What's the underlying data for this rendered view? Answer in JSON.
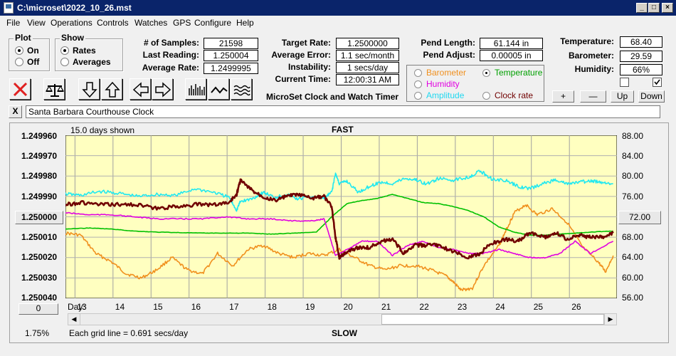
{
  "window": {
    "title": "C:\\microset\\2022_10_26.mst"
  },
  "menu": [
    "File",
    "View",
    "Operations",
    "Controls",
    "Watches",
    "GPS",
    "Configure",
    "Help"
  ],
  "plot_group": {
    "label": "Plot",
    "on": "On",
    "off": "Off",
    "selected": "On"
  },
  "show_group": {
    "label": "Show",
    "rates": "Rates",
    "averages": "Averages",
    "selected": "Rates"
  },
  "stats": {
    "samples_label": "# of Samples:",
    "samples": "21598",
    "last_label": "Last Reading:",
    "last": "1.250004",
    "avg_label": "Average Rate:",
    "avg": "1.2499995",
    "target_label": "Target Rate:",
    "target": "1.2500000",
    "avgerr_label": "Average Error:",
    "avgerr": "1.1 sec/month",
    "instab_label": "Instability:",
    "instab": "1 secs/day",
    "time_label": "Current Time:",
    "time": "12:00:31 AM",
    "pendlen_label": "Pend Length:",
    "pendlen": "61.144 in",
    "pendadj_label": "Pend Adjust:",
    "pendadj": "0.00005 in",
    "temp_label": "Temperature:",
    "temp": "68.40",
    "baro_label": "Barometer:",
    "baro": "29.59",
    "hum_label": "Humidity:",
    "hum": "66%"
  },
  "app_name": "MicroSet Clock and Watch Timer",
  "sensor_options": {
    "barometer": "Barometer",
    "temperature": "Temperature",
    "humidity": "Humidity",
    "amplitude": "Amplitude",
    "clockrate": "Clock rate",
    "selected": "Temperature"
  },
  "scale_buttons": {
    "plus": "+",
    "minus": "—",
    "up": "Up",
    "down": "Down"
  },
  "note": {
    "close": "X",
    "text": "Santa Barbara Courthouse Clock"
  },
  "graph": {
    "days_shown": "15.0 days shown",
    "fast": "FAST",
    "slow": "SLOW",
    "grid_note": "Each grid line = 0.691 secs/day",
    "left_ticks": [
      "1.249960",
      "1.249970",
      "1.249980",
      "1.249990",
      "1.250000",
      "1.250010",
      "1.250020",
      "1.250030",
      "1.250040"
    ],
    "right_ticks": [
      "88.00",
      "84.00",
      "80.00",
      "76.00",
      "72.00",
      "68.00",
      "64.00",
      "60.00",
      "56.00"
    ],
    "day_label": "Day:",
    "days": [
      "13",
      "14",
      "15",
      "16",
      "17",
      "18",
      "19",
      "20",
      "21",
      "22",
      "23",
      "24",
      "25",
      "26"
    ],
    "offset_button": "0",
    "percent": "1.75%",
    "colors": {
      "background": "#ffffc0",
      "rate": "#700000",
      "temperature": "#00c000",
      "barometer": "#f0901e",
      "humidity": "#e000e0",
      "amplitude": "#20e8f0"
    }
  },
  "chart_data": {
    "type": "line",
    "x_label": "Day",
    "xlim": [
      12.4,
      26.9
    ],
    "series": [
      {
        "key": "rate",
        "axis": "left",
        "x": [
          12.4,
          12.8,
          13.3,
          13.8,
          14.3,
          14.8,
          15.3,
          15.8,
          16.3,
          16.7,
          16.9,
          17.0,
          17.3,
          17.6,
          17.9,
          18.2,
          18.5,
          18.9,
          19.2,
          19.4,
          19.5,
          19.6,
          19.8,
          20.1,
          20.4,
          20.7,
          21.0,
          21.3,
          21.6,
          21.9,
          22.2,
          22.6,
          23.0,
          23.3,
          23.6,
          24.0,
          24.3,
          24.6,
          25.0,
          25.3,
          25.6,
          25.9,
          26.2,
          26.5,
          26.8
        ],
        "y": [
          1.249994,
          1.249993,
          1.249994,
          1.249994,
          1.249994,
          1.249996,
          1.249995,
          1.249994,
          1.249994,
          1.249993,
          1.249989,
          1.249982,
          1.249987,
          1.24999,
          1.249992,
          1.24999,
          1.249989,
          1.249991,
          1.24999,
          1.249995,
          1.25001,
          1.25002,
          1.250017,
          1.250015,
          1.250015,
          1.250012,
          1.250011,
          1.250018,
          1.250014,
          1.250014,
          1.250014,
          1.250017,
          1.25002,
          1.250018,
          1.250013,
          1.250011,
          1.250012,
          1.250008,
          1.25001,
          1.250008,
          1.250011,
          1.250009,
          1.25001,
          1.25001,
          1.250008
        ]
      },
      {
        "key": "amplitude",
        "axis": "right",
        "x": [
          12.4,
          12.8,
          13.3,
          13.8,
          14.3,
          14.8,
          15.3,
          15.8,
          16.3,
          16.7,
          16.9,
          17.0,
          17.3,
          17.6,
          17.9,
          18.2,
          18.5,
          18.9,
          19.2,
          19.4,
          19.5,
          19.6,
          19.8,
          20.1,
          20.4,
          20.7,
          21.0,
          21.3,
          21.6,
          21.9,
          22.2,
          22.6,
          23.0,
          23.3,
          23.6,
          24.0,
          24.3,
          24.6,
          25.0,
          25.3,
          25.6,
          25.9,
          26.2,
          26.5,
          26.8
        ],
        "y": [
          76.5,
          76.2,
          77.0,
          76.6,
          76.0,
          76.4,
          76.2,
          77.5,
          76.8,
          75.8,
          73.3,
          75.0,
          75.5,
          76.8,
          75.8,
          76.4,
          75.5,
          76.0,
          75.6,
          76.8,
          80.5,
          78.5,
          79.0,
          76.8,
          78.0,
          78.8,
          78.5,
          79.5,
          79.3,
          78.4,
          79.5,
          79.2,
          79.8,
          81.0,
          79.5,
          79.0,
          78.0,
          77.5,
          78.6,
          79.3,
          78.4,
          78.8,
          79.0,
          78.8,
          78.5
        ]
      },
      {
        "key": "temperature",
        "axis": "right",
        "x": [
          12.4,
          13.0,
          13.6,
          14.2,
          14.8,
          15.4,
          16.0,
          16.6,
          17.2,
          17.8,
          18.4,
          19.0,
          19.4,
          19.8,
          20.2,
          20.6,
          21.0,
          21.4,
          21.8,
          22.2,
          22.6,
          23.0,
          23.4,
          23.8,
          24.2,
          24.6,
          25.0,
          25.4,
          25.8,
          26.2,
          26.8
        ],
        "y": [
          69.6,
          69.8,
          69.6,
          69.2,
          69.0,
          68.9,
          68.8,
          68.8,
          68.8,
          68.6,
          68.8,
          69.0,
          72.0,
          74.6,
          75.2,
          75.6,
          76.4,
          75.6,
          74.8,
          74.6,
          74.0,
          73.2,
          72.0,
          70.0,
          69.0,
          68.4,
          68.4,
          68.6,
          68.8,
          69.0,
          69.2
        ]
      },
      {
        "key": "barometer",
        "axis": "left",
        "x": [
          12.4,
          12.8,
          13.2,
          13.6,
          14.0,
          14.4,
          14.8,
          15.2,
          15.6,
          16.0,
          16.4,
          16.8,
          17.2,
          17.6,
          18.0,
          18.4,
          18.8,
          19.2,
          19.6,
          20.0,
          20.4,
          20.8,
          21.2,
          21.6,
          22.0,
          22.4,
          22.6,
          22.8,
          23.1,
          23.4,
          23.8,
          24.0,
          24.2,
          24.5,
          24.8,
          25.2,
          25.6,
          26.0,
          26.4,
          26.6,
          26.8
        ],
        "y": [
          1.250008,
          1.250009,
          1.250018,
          1.250022,
          1.250028,
          1.25003,
          1.250026,
          1.25002,
          1.250026,
          1.250028,
          1.250018,
          1.250024,
          1.250016,
          1.250014,
          1.250018,
          1.25002,
          1.250018,
          1.250019,
          1.250016,
          1.25002,
          1.250024,
          1.250026,
          1.250024,
          1.250024,
          1.250026,
          1.250029,
          1.250032,
          1.250036,
          1.250035,
          1.250024,
          1.250014,
          1.250006,
          1.249998,
          1.249994,
          1.249999,
          1.249996,
          1.250003,
          1.250015,
          1.250022,
          1.250027,
          1.250019
        ]
      },
      {
        "key": "humidity",
        "axis": "left",
        "x": [
          12.4,
          13.0,
          13.6,
          14.2,
          14.8,
          15.4,
          16.0,
          16.6,
          17.2,
          17.8,
          18.4,
          18.9,
          19.2,
          19.5,
          19.8,
          20.2,
          20.6,
          21.0,
          21.4,
          21.8,
          22.2,
          22.6,
          23.0,
          23.4,
          23.8,
          24.2,
          24.6,
          25.0,
          25.4,
          25.8,
          26.2,
          26.8
        ],
        "y": [
          1.249998,
          1.249999,
          1.249999,
          1.25,
          1.250001,
          1.250001,
          1.250001,
          1.25,
          1.250001,
          1.250001,
          1.250002,
          1.250002,
          1.250001,
          1.250019,
          1.250016,
          1.250012,
          1.250012,
          1.250019,
          1.250014,
          1.250012,
          1.250015,
          1.250016,
          1.250018,
          1.250018,
          1.250016,
          1.250018,
          1.25002,
          1.25002,
          1.250018,
          1.250012,
          1.250018,
          1.250012
        ]
      }
    ]
  }
}
